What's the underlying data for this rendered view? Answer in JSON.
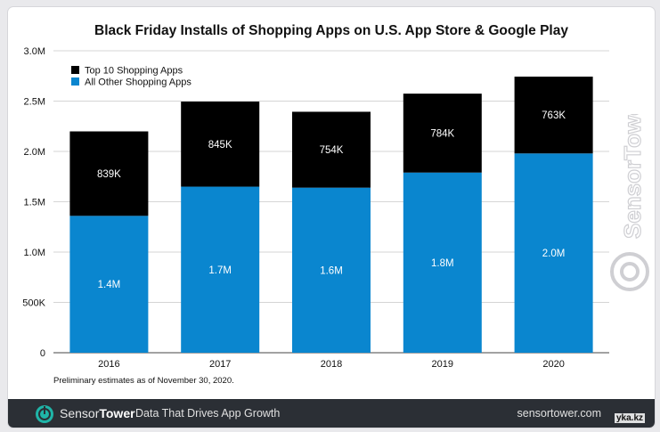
{
  "chart_data": {
    "type": "bar",
    "stacked": true,
    "title": "Black Friday Installs of Shopping Apps on U.S. App Store & Google Play",
    "categories": [
      "2016",
      "2017",
      "2018",
      "2019",
      "2020"
    ],
    "series": [
      {
        "name": "All Other Shopping Apps",
        "color": "#0a86cf",
        "values": [
          1360000,
          1650000,
          1640000,
          1790000,
          1980000
        ],
        "labels": [
          "1.4M",
          "1.7M",
          "1.6M",
          "1.8M",
          "2.0M"
        ]
      },
      {
        "name": "Top 10 Shopping Apps",
        "color": "#000000",
        "values": [
          839000,
          845000,
          754000,
          784000,
          763000
        ],
        "labels": [
          "839K",
          "845K",
          "754K",
          "784K",
          "763K"
        ]
      }
    ],
    "ylim": [
      0,
      3000000
    ],
    "yticks": [
      0,
      500000,
      1000000,
      1500000,
      2000000,
      2500000,
      3000000
    ],
    "ytick_labels": [
      "0",
      "500K",
      "1.0M",
      "1.5M",
      "2.0M",
      "2.5M",
      "3.0M"
    ],
    "grid": true,
    "legend_position": "top-left",
    "xlabel": "",
    "ylabel": ""
  },
  "footnote": "Preliminary estimates as of November 30, 2020.",
  "footer": {
    "brand_part1": "Sensor",
    "brand_part2": "Tower",
    "tagline": "Data That Drives App Growth",
    "url": "sensortower.com",
    "logo_icon": "sensortower-logo-icon"
  },
  "watermark": {
    "text": "SensorTower",
    "icon": "sensortower-logo-icon"
  },
  "site_mark": "yka.kz"
}
